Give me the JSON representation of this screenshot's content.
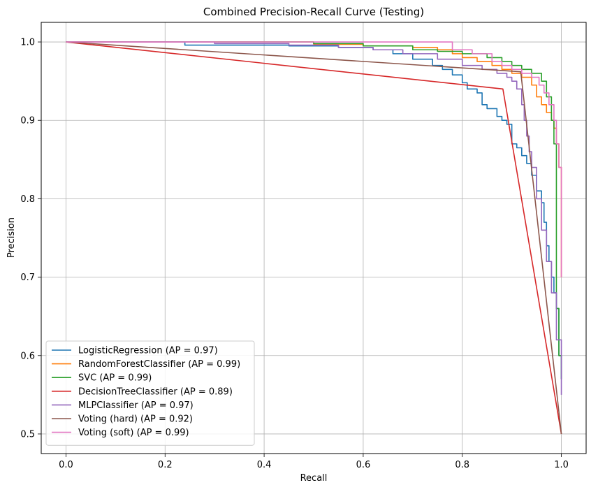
{
  "chart_data": {
    "type": "line",
    "title": "Combined Precision-Recall Curve (Testing)",
    "xlabel": "Recall",
    "ylabel": "Precision",
    "xlim": [
      -0.05,
      1.05
    ],
    "ylim": [
      0.475,
      1.025
    ],
    "xticks": [
      0.0,
      0.2,
      0.4,
      0.6,
      0.8,
      1.0
    ],
    "xtick_labels": [
      "0.0",
      "0.2",
      "0.4",
      "0.6",
      "0.8",
      "1.0"
    ],
    "yticks": [
      0.5,
      0.6,
      0.7,
      0.8,
      0.9,
      1.0
    ],
    "ytick_labels": [
      "0.5",
      "0.6",
      "0.7",
      "0.8",
      "0.9",
      "1.0"
    ],
    "grid": true,
    "legend_position": "lower-left",
    "series": [
      {
        "name": "LogisticRegression (AP = 0.97)",
        "color": "#1f77b4",
        "step": true,
        "x": [
          0.0,
          0.24,
          0.24,
          0.45,
          0.55,
          0.62,
          0.66,
          0.7,
          0.74,
          0.76,
          0.78,
          0.8,
          0.81,
          0.83,
          0.84,
          0.85,
          0.87,
          0.88,
          0.89,
          0.9,
          0.9,
          0.91,
          0.92,
          0.93,
          0.94,
          0.95,
          0.96,
          0.965,
          0.97,
          0.975,
          0.98,
          0.985,
          0.99,
          0.995,
          1.0
        ],
        "y": [
          1.0,
          1.0,
          0.996,
          0.995,
          0.993,
          0.99,
          0.985,
          0.978,
          0.97,
          0.965,
          0.958,
          0.948,
          0.94,
          0.935,
          0.92,
          0.915,
          0.905,
          0.9,
          0.895,
          0.885,
          0.87,
          0.865,
          0.855,
          0.845,
          0.83,
          0.81,
          0.795,
          0.77,
          0.74,
          0.72,
          0.7,
          0.68,
          0.66,
          0.6,
          0.57
        ]
      },
      {
        "name": "RandomForestClassifier (AP = 0.99)",
        "color": "#ff7f0e",
        "step": true,
        "x": [
          0.0,
          0.5,
          0.6,
          0.7,
          0.75,
          0.78,
          0.8,
          0.83,
          0.86,
          0.88,
          0.9,
          0.92,
          0.94,
          0.95,
          0.96,
          0.97,
          0.98,
          0.985,
          0.99,
          0.995,
          1.0,
          1.0
        ],
        "y": [
          1.0,
          0.997,
          0.995,
          0.993,
          0.99,
          0.985,
          0.98,
          0.975,
          0.97,
          0.965,
          0.96,
          0.955,
          0.945,
          0.93,
          0.92,
          0.91,
          0.9,
          0.89,
          0.87,
          0.84,
          0.8,
          0.7
        ]
      },
      {
        "name": "SVC (AP = 0.99)",
        "color": "#2ca02c",
        "step": true,
        "x": [
          0.0,
          0.5,
          0.6,
          0.7,
          0.75,
          0.8,
          0.85,
          0.88,
          0.9,
          0.92,
          0.94,
          0.96,
          0.97,
          0.98,
          0.985,
          0.99,
          0.99,
          0.995,
          1.0
        ],
        "y": [
          1.0,
          0.998,
          0.995,
          0.99,
          0.988,
          0.985,
          0.98,
          0.975,
          0.97,
          0.965,
          0.96,
          0.95,
          0.93,
          0.9,
          0.87,
          0.84,
          0.66,
          0.6,
          0.57
        ]
      },
      {
        "name": "DecisionTreeClassifier (AP = 0.89)",
        "color": "#d62728",
        "step": false,
        "x": [
          0.0,
          0.882,
          1.0
        ],
        "y": [
          1.0,
          0.94,
          0.5
        ]
      },
      {
        "name": "MLPClassifier (AP = 0.97)",
        "color": "#9467bd",
        "step": true,
        "x": [
          0.0,
          0.3,
          0.45,
          0.55,
          0.62,
          0.68,
          0.75,
          0.8,
          0.84,
          0.87,
          0.89,
          0.9,
          0.91,
          0.92,
          0.925,
          0.93,
          0.935,
          0.94,
          0.95,
          0.96,
          0.97,
          0.98,
          0.99,
          1.0
        ],
        "y": [
          1.0,
          0.998,
          0.996,
          0.993,
          0.99,
          0.985,
          0.978,
          0.97,
          0.965,
          0.96,
          0.955,
          0.95,
          0.94,
          0.92,
          0.9,
          0.88,
          0.86,
          0.84,
          0.8,
          0.76,
          0.72,
          0.68,
          0.62,
          0.55
        ]
      },
      {
        "name": "Voting (hard) (AP = 0.92)",
        "color": "#8c564b",
        "step": false,
        "x": [
          0.0,
          0.918,
          1.0
        ],
        "y": [
          1.0,
          0.962,
          0.5
        ]
      },
      {
        "name": "Voting (soft) (AP = 0.99)",
        "color": "#e377c2",
        "step": true,
        "x": [
          0.0,
          0.75,
          0.78,
          0.82,
          0.86,
          0.88,
          0.9,
          0.92,
          0.94,
          0.955,
          0.965,
          0.975,
          0.985,
          0.99,
          0.995,
          1.0,
          1.0
        ],
        "y": [
          1.0,
          1.0,
          0.99,
          0.985,
          0.975,
          0.97,
          0.965,
          0.96,
          0.955,
          0.945,
          0.935,
          0.92,
          0.9,
          0.87,
          0.84,
          0.78,
          0.7
        ]
      }
    ]
  }
}
